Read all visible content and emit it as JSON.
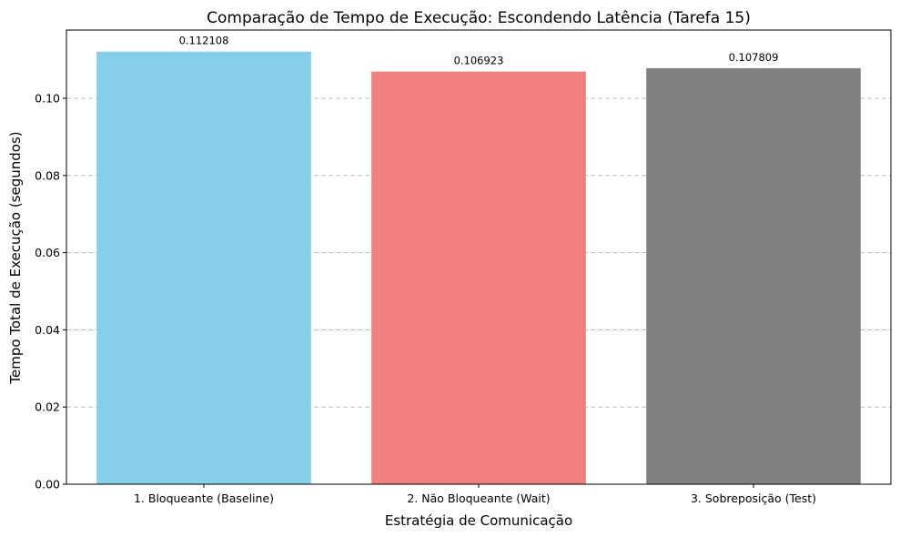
{
  "chart_data": {
    "type": "bar",
    "title": "Comparação de Tempo de Execução: Escondendo Latência (Tarefa 15)",
    "xlabel": "Estratégia de Comunicação",
    "ylabel": "Tempo Total de Execução (segundos)",
    "categories": [
      "1. Bloqueante (Baseline)",
      "2. Não Bloqueante (Wait)",
      "3. Sobreposição (Test)"
    ],
    "values": [
      0.112108,
      0.106923,
      0.107809
    ],
    "value_labels": [
      "0.112108",
      "0.106923",
      "0.107809"
    ],
    "colors": [
      "#87ceeb",
      "#f08080",
      "#808080"
    ],
    "ylim": [
      0,
      0.1177
    ],
    "yticks": [
      0,
      0.02,
      0.04,
      0.06,
      0.08,
      0.1
    ],
    "ytick_labels": [
      "0.00",
      "0.02",
      "0.04",
      "0.06",
      "0.08",
      "0.10"
    ],
    "grid": "y-dashed"
  }
}
